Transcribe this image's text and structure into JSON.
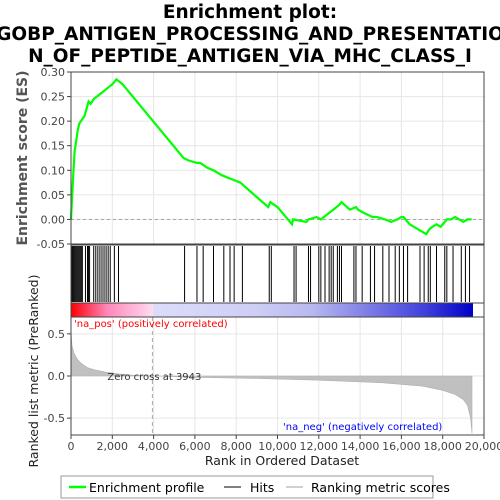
{
  "chart_data": {
    "type": "line",
    "title_lines": [
      "Enrichment plot:",
      "GOBP_ANTIGEN_PROCESSING_AND_PRESENTATIO",
      "N_OF_PEPTIDE_ANTIGEN_VIA_MHC_CLASS_I"
    ],
    "top_panel": {
      "ylabel": "Enrichment score (ES)",
      "ylim": [
        -0.05,
        0.3
      ],
      "yticks": [
        -0.05,
        0.0,
        0.05,
        0.1,
        0.15,
        0.2,
        0.25,
        0.3
      ],
      "ytick_labels": [
        "-0.05",
        "0.00",
        "0.05",
        "0.10",
        "0.15",
        "0.20",
        "0.25",
        "0.30"
      ],
      "series": [
        {
          "name": "Enrichment profile",
          "color": "#00ff00",
          "x": [
            0,
            60,
            120,
            180,
            250,
            320,
            400,
            480,
            560,
            650,
            750,
            850,
            950,
            1100,
            1250,
            1400,
            1550,
            1700,
            1850,
            2000,
            2100,
            2200,
            2350,
            2500,
            5450,
            5700,
            6100,
            6250,
            6600,
            6900,
            7300,
            7600,
            7900,
            8200,
            9550,
            9650,
            10000,
            10700,
            10750,
            11400,
            11500,
            11900,
            12100,
            12400,
            12700,
            13000,
            13100,
            13500,
            13800,
            13900,
            14100,
            14600,
            14800,
            15200,
            15500,
            15800,
            16000,
            16100,
            16400,
            17000,
            17200,
            17350,
            17500,
            17700,
            17900,
            18100,
            18200,
            18400,
            18600,
            18800,
            19000,
            19200,
            19400
          ],
          "y": [
            0.0,
            0.05,
            0.1,
            0.14,
            0.16,
            0.18,
            0.195,
            0.2,
            0.205,
            0.21,
            0.225,
            0.24,
            0.235,
            0.245,
            0.25,
            0.255,
            0.26,
            0.265,
            0.27,
            0.275,
            0.28,
            0.285,
            0.28,
            0.275,
            0.125,
            0.12,
            0.115,
            0.115,
            0.105,
            0.1,
            0.09,
            0.085,
            0.08,
            0.075,
            0.025,
            0.035,
            0.025,
            -0.01,
            0.0,
            -0.005,
            0.0,
            0.005,
            0.0,
            0.01,
            0.02,
            0.03,
            0.035,
            0.02,
            0.025,
            0.02,
            0.015,
            0.005,
            0.005,
            0.0,
            -0.005,
            0.0,
            0.005,
            0.005,
            -0.01,
            -0.025,
            -0.03,
            -0.02,
            -0.015,
            -0.01,
            -0.015,
            -0.005,
            0.0,
            0.0,
            0.005,
            0.0,
            -0.005,
            0.0,
            0.0
          ]
        }
      ]
    },
    "hits_panel": {
      "legend_name": "Hits",
      "hit_ranks": [
        50,
        100,
        150,
        200,
        250,
        300,
        350,
        400,
        450,
        500,
        550,
        700,
        800,
        850,
        900,
        1100,
        1200,
        1300,
        1400,
        1500,
        1600,
        1700,
        1800,
        1900,
        2100,
        2300,
        5500,
        6100,
        6400,
        6900,
        7400,
        7700,
        7900,
        8300,
        9600,
        9700,
        10800,
        10900,
        11500,
        11600,
        12000,
        12100,
        12300,
        12500,
        12600,
        12700,
        12900,
        13000,
        13100,
        13700,
        13800,
        14100,
        14500,
        14700,
        15100,
        15400,
        15700,
        15900,
        16100,
        16300,
        16900,
        17100,
        17300,
        17400,
        17700,
        18100,
        18200,
        18500,
        18900,
        19100,
        19300
      ]
    },
    "ranked_panel": {
      "ylabel": "Ranked list metric (PreRanked)",
      "ylim": [
        -0.7,
        0.7
      ],
      "yticks": [
        -0.5,
        0.0,
        0.5
      ],
      "ytick_labels": [
        "-0.5",
        "0.0",
        "0.5"
      ],
      "legend_name": "Ranking metric scores",
      "positive_label": "'na_pos' (positively correlated)",
      "negative_label": "'na_neg' (negatively correlated)",
      "zero_cross_label": "Zero cross at 3943",
      "zero_cross": 3943,
      "profile_x": [
        0,
        50,
        150,
        300,
        500,
        800,
        1200,
        1700,
        2300,
        3000,
        3943,
        6000,
        9000,
        12000,
        15000,
        17000,
        18000,
        18600,
        19000,
        19200,
        19350,
        19420
      ],
      "profile_y": [
        0.53,
        0.36,
        0.27,
        0.2,
        0.15,
        0.1,
        0.07,
        0.045,
        0.025,
        0.01,
        0.0,
        -0.015,
        -0.03,
        -0.05,
        -0.08,
        -0.12,
        -0.17,
        -0.22,
        -0.28,
        -0.35,
        -0.5,
        -0.68
      ]
    },
    "xaxis": {
      "label": "Rank in Ordered Dataset",
      "xlim": [
        0,
        20000
      ],
      "xticks": [
        0,
        2000,
        4000,
        6000,
        8000,
        10000,
        12000,
        14000,
        16000,
        18000,
        20000
      ],
      "xtick_labels": [
        "0",
        "2,000",
        "4,000",
        "6,000",
        "8,000",
        "10,000",
        "12,000",
        "14,000",
        "16,000",
        "18,000",
        "20,000"
      ],
      "n_genes": 19420
    },
    "colors": {
      "profile": "#00ff00",
      "hits": "#000000",
      "ranking": "#c0c0c0",
      "pos_text": "#ff0000",
      "neg_text": "#0000ff"
    }
  }
}
